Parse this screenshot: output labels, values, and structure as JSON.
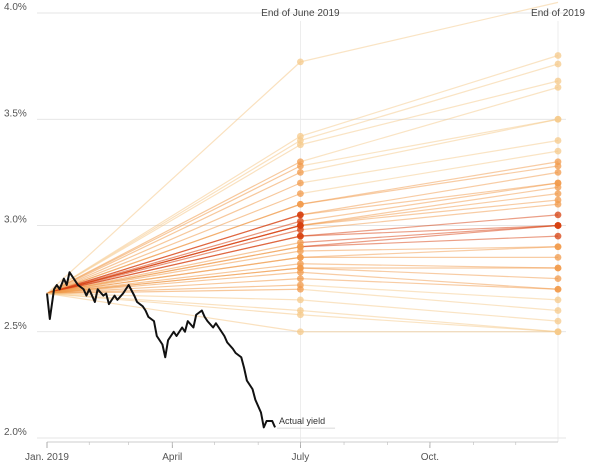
{
  "chart_data": {
    "type": "line",
    "y_axis": {
      "ticks": [
        "4.0%",
        "3.5%",
        "3.0%",
        "2.5%",
        "2.0%"
      ],
      "tick_values": [
        4.0,
        3.5,
        3.0,
        2.5,
        2.0
      ],
      "ylim": [
        2.0,
        4.0
      ]
    },
    "x_axis": {
      "ticks": [
        "Jan. 2019",
        "April",
        "July",
        "Oct."
      ],
      "tick_dates": [
        "2019-01-02",
        "2019-04-01",
        "2019-07-01",
        "2019-10-01"
      ],
      "xlim": [
        "2019-01-02",
        "2019-12-31"
      ]
    },
    "column_labels": {
      "june": "End of June 2019",
      "year_end": "End of 2019"
    },
    "grid": true,
    "colors": {
      "actual_line": "#111111",
      "forecast_light": "#f6c98a",
      "forecast_mid": "#f19a4a",
      "forecast_dark": "#d7400f",
      "grid": "#dddddd"
    },
    "forecast_origin": {
      "date": "2019-01-02",
      "value": 2.68
    },
    "forecasts": [
      {
        "june": 3.77,
        "year_end": 4.05
      },
      {
        "june": 3.42,
        "year_end": 3.8
      },
      {
        "june": 3.4,
        "year_end": 3.76
      },
      {
        "june": 3.38,
        "year_end": 3.68
      },
      {
        "june": 3.3,
        "year_end": 3.65
      },
      {
        "june": 3.28,
        "year_end": 3.5
      },
      {
        "june": 3.25,
        "year_end": 3.5
      },
      {
        "june": 3.2,
        "year_end": 3.4
      },
      {
        "june": 3.15,
        "year_end": 3.35
      },
      {
        "june": 3.1,
        "year_end": 3.3
      },
      {
        "june": 3.1,
        "year_end": 3.28
      },
      {
        "june": 3.05,
        "year_end": 3.25
      },
      {
        "june": 3.05,
        "year_end": 3.2
      },
      {
        "june": 3.02,
        "year_end": 3.2
      },
      {
        "june": 3.0,
        "year_end": 3.18
      },
      {
        "june": 3.0,
        "year_end": 3.15
      },
      {
        "june": 3.0,
        "year_end": 3.12
      },
      {
        "june": 2.98,
        "year_end": 3.1
      },
      {
        "june": 2.95,
        "year_end": 3.05
      },
      {
        "june": 2.95,
        "year_end": 3.0
      },
      {
        "june": 2.92,
        "year_end": 3.0
      },
      {
        "june": 2.9,
        "year_end": 3.0
      },
      {
        "june": 2.9,
        "year_end": 2.95
      },
      {
        "june": 2.88,
        "year_end": 2.9
      },
      {
        "june": 2.85,
        "year_end": 2.9
      },
      {
        "june": 2.85,
        "year_end": 2.85
      },
      {
        "june": 2.82,
        "year_end": 2.8
      },
      {
        "june": 2.8,
        "year_end": 2.8
      },
      {
        "june": 2.8,
        "year_end": 2.75
      },
      {
        "june": 2.78,
        "year_end": 2.7
      },
      {
        "june": 2.75,
        "year_end": 2.7
      },
      {
        "june": 2.72,
        "year_end": 2.65
      },
      {
        "june": 2.7,
        "year_end": 2.6
      },
      {
        "june": 2.65,
        "year_end": 2.55
      },
      {
        "june": 2.6,
        "year_end": 2.5
      },
      {
        "june": 2.58,
        "year_end": 2.5
      },
      {
        "june": 2.5,
        "year_end": 2.5
      }
    ],
    "actual_series": {
      "name": "Actual yield",
      "dates": [
        "2019-01-02",
        "2019-01-04",
        "2019-01-07",
        "2019-01-09",
        "2019-01-11",
        "2019-01-14",
        "2019-01-16",
        "2019-01-18",
        "2019-01-22",
        "2019-01-24",
        "2019-01-28",
        "2019-01-30",
        "2019-02-01",
        "2019-02-05",
        "2019-02-07",
        "2019-02-11",
        "2019-02-13",
        "2019-02-15",
        "2019-02-19",
        "2019-02-21",
        "2019-02-25",
        "2019-02-27",
        "2019-03-01",
        "2019-03-05",
        "2019-03-07",
        "2019-03-11",
        "2019-03-13",
        "2019-03-15",
        "2019-03-19",
        "2019-03-21",
        "2019-03-25",
        "2019-03-27",
        "2019-03-29",
        "2019-04-02",
        "2019-04-04",
        "2019-04-08",
        "2019-04-10",
        "2019-04-12",
        "2019-04-16",
        "2019-04-18",
        "2019-04-22",
        "2019-04-24",
        "2019-04-26",
        "2019-04-30",
        "2019-05-02",
        "2019-05-06",
        "2019-05-08",
        "2019-05-10",
        "2019-05-14",
        "2019-05-16",
        "2019-05-20",
        "2019-05-22",
        "2019-05-24",
        "2019-05-28",
        "2019-05-30",
        "2019-06-03",
        "2019-06-05",
        "2019-06-07",
        "2019-06-11",
        "2019-06-13"
      ],
      "values": [
        2.68,
        2.56,
        2.7,
        2.72,
        2.7,
        2.75,
        2.72,
        2.78,
        2.74,
        2.72,
        2.7,
        2.67,
        2.7,
        2.64,
        2.7,
        2.67,
        2.68,
        2.63,
        2.67,
        2.65,
        2.68,
        2.7,
        2.72,
        2.67,
        2.64,
        2.62,
        2.6,
        2.57,
        2.55,
        2.48,
        2.44,
        2.38,
        2.46,
        2.5,
        2.48,
        2.52,
        2.5,
        2.55,
        2.52,
        2.58,
        2.6,
        2.57,
        2.55,
        2.52,
        2.54,
        2.5,
        2.48,
        2.45,
        2.42,
        2.4,
        2.38,
        2.33,
        2.27,
        2.23,
        2.18,
        2.12,
        2.05,
        2.08,
        2.08,
        2.05
      ]
    },
    "annotation": {
      "text": "Actual yield",
      "date": "2019-06-13",
      "value": 2.07
    }
  }
}
